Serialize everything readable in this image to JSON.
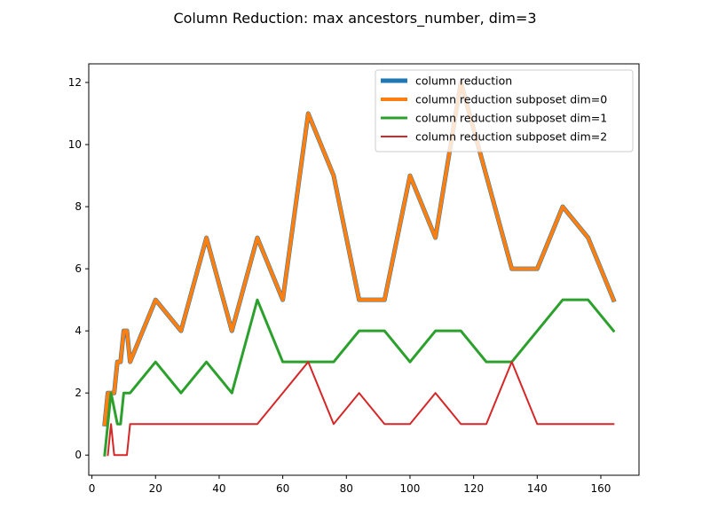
{
  "chart_data": {
    "type": "line",
    "title": "Column Reduction: max ancestors_number, dim=3",
    "xlabel": "",
    "ylabel": "",
    "xlim": [
      -1.0,
      172.0
    ],
    "ylim": [
      -0.65,
      12.6
    ],
    "xticks": [
      0,
      20,
      40,
      60,
      80,
      100,
      120,
      140,
      160
    ],
    "yticks": [
      0,
      2,
      4,
      6,
      8,
      10,
      12
    ],
    "grid": false,
    "legend_position": "top-right",
    "series": [
      {
        "name": "column reduction",
        "color": "#1f77b4",
        "x": [
          4,
          5,
          6,
          7,
          8,
          9,
          10,
          11,
          12,
          20,
          28,
          36,
          44,
          52,
          60,
          68,
          76,
          84,
          92,
          100,
          108,
          116,
          124,
          132,
          140,
          148,
          156,
          164
        ],
        "y": [
          1,
          2,
          2,
          2,
          3,
          3,
          4,
          4,
          3,
          5,
          4,
          7,
          4,
          7,
          5,
          11,
          9,
          5,
          5,
          9,
          7,
          12,
          9,
          6,
          6,
          8,
          7,
          5
        ]
      },
      {
        "name": "column reduction subposet dim=0",
        "color": "#ff7f0e",
        "x": [
          4,
          5,
          6,
          7,
          8,
          9,
          10,
          11,
          12,
          20,
          28,
          36,
          44,
          52,
          60,
          68,
          76,
          84,
          92,
          100,
          108,
          116,
          124,
          132,
          140,
          148,
          156,
          164
        ],
        "y": [
          1,
          2,
          2,
          2,
          3,
          3,
          4,
          4,
          3,
          5,
          4,
          7,
          4,
          7,
          5,
          11,
          9,
          5,
          5,
          9,
          7,
          12,
          9,
          6,
          6,
          8,
          7,
          5
        ]
      },
      {
        "name": "column reduction subposet dim=1",
        "color": "#2ca02c",
        "x": [
          4,
          6,
          8,
          9,
          10,
          12,
          20,
          28,
          36,
          44,
          52,
          60,
          68,
          76,
          84,
          92,
          100,
          108,
          116,
          124,
          132,
          140,
          148,
          156,
          164
        ],
        "y": [
          0,
          2,
          1,
          1,
          2,
          2,
          3,
          2,
          3,
          2,
          5,
          3,
          3,
          3,
          4,
          4,
          3,
          4,
          4,
          3,
          3,
          4,
          5,
          5,
          4
        ]
      },
      {
        "name": "column reduction subposet dim=2",
        "color": "#d62728",
        "x": [
          5,
          6,
          7,
          8,
          9,
          10,
          11,
          12,
          20,
          28,
          36,
          44,
          52,
          60,
          68,
          76,
          84,
          92,
          100,
          108,
          116,
          124,
          132,
          140,
          148,
          156,
          164
        ],
        "y": [
          0,
          1,
          0,
          0,
          0,
          0,
          0,
          1,
          1,
          1,
          1,
          1,
          1,
          2,
          3,
          1,
          2,
          1,
          1,
          2,
          1,
          1,
          3,
          1,
          1,
          1,
          1
        ]
      }
    ]
  }
}
